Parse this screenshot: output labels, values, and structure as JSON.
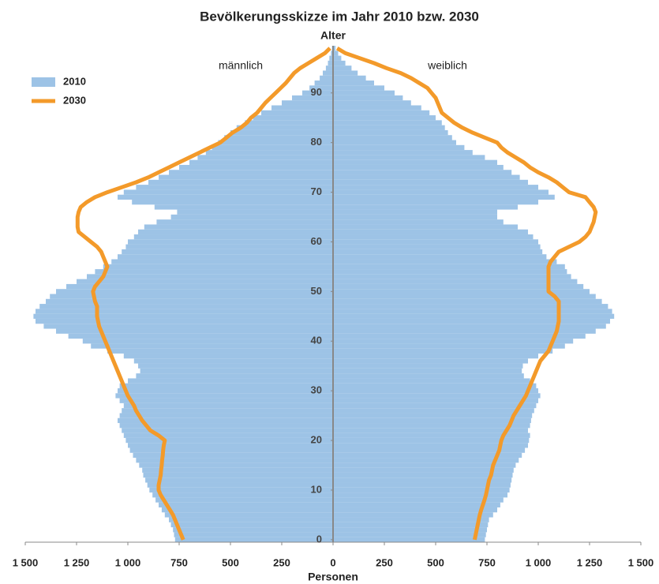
{
  "chart_data": {
    "type": "pyramid",
    "title": "Bevölkerungsskizze im Jahr 2010 bzw. 2030",
    "y_label": "Alter",
    "x_label": "Personen",
    "left_label": "männlich",
    "right_label": "weiblich",
    "ages": [
      0,
      1,
      2,
      3,
      4,
      5,
      6,
      7,
      8,
      9,
      10,
      11,
      12,
      13,
      14,
      15,
      16,
      17,
      18,
      19,
      20,
      21,
      22,
      23,
      24,
      25,
      26,
      27,
      28,
      29,
      30,
      31,
      32,
      33,
      34,
      35,
      36,
      37,
      38,
      39,
      40,
      41,
      42,
      43,
      44,
      45,
      46,
      47,
      48,
      49,
      50,
      51,
      52,
      53,
      54,
      55,
      56,
      57,
      58,
      59,
      60,
      61,
      62,
      63,
      64,
      65,
      66,
      67,
      68,
      69,
      70,
      71,
      72,
      73,
      74,
      75,
      76,
      77,
      78,
      79,
      80,
      81,
      82,
      83,
      84,
      85,
      86,
      87,
      88,
      89,
      90,
      91,
      92,
      93,
      94,
      95,
      96,
      97,
      98,
      99
    ],
    "ylim": [
      0,
      100
    ],
    "yticks": [
      0,
      10,
      20,
      30,
      40,
      50,
      60,
      70,
      80,
      90
    ],
    "xlim": [
      -1500,
      1500
    ],
    "xticks": [
      {
        "value": -1500,
        "label": "1 500"
      },
      {
        "value": -1250,
        "label": "1 250"
      },
      {
        "value": -1000,
        "label": "1 000"
      },
      {
        "value": -750,
        "label": "750"
      },
      {
        "value": -500,
        "label": "500"
      },
      {
        "value": -250,
        "label": "250"
      },
      0,
      250,
      500,
      750,
      {
        "value": 1000,
        "label": "1 000"
      },
      {
        "value": 1250,
        "label": "1 250"
      },
      {
        "value": 1500,
        "label": "1 500"
      }
    ],
    "legend_position": "upper left",
    "series": [
      {
        "name": "2010",
        "kind": "bar",
        "side": "left",
        "color": "#9dc3e6",
        "values": [
          770,
          775,
          780,
          790,
          800,
          820,
          835,
          850,
          865,
          880,
          895,
          905,
          915,
          925,
          930,
          945,
          960,
          975,
          990,
          1000,
          1010,
          1020,
          1030,
          1040,
          1050,
          1040,
          1030,
          1020,
          1040,
          1060,
          1050,
          1040,
          1000,
          960,
          940,
          950,
          970,
          1020,
          1100,
          1180,
          1220,
          1290,
          1350,
          1410,
          1450,
          1460,
          1450,
          1430,
          1400,
          1380,
          1350,
          1300,
          1250,
          1200,
          1160,
          1120,
          1080,
          1050,
          1030,
          1010,
          1000,
          970,
          950,
          920,
          860,
          790,
          760,
          870,
          980,
          1050,
          1020,
          960,
          900,
          850,
          800,
          750,
          700,
          660,
          620,
          590,
          560,
          530,
          500,
          470,
          430,
          390,
          350,
          300,
          250,
          200,
          150,
          115,
          90,
          65,
          50,
          35,
          25,
          18,
          10,
          5
        ]
      },
      {
        "kind": "bar",
        "side": "right",
        "color": "#9dc3e6",
        "values": [
          740,
          745,
          750,
          755,
          760,
          780,
          800,
          815,
          830,
          850,
          860,
          865,
          870,
          875,
          880,
          890,
          905,
          920,
          935,
          950,
          955,
          960,
          950,
          960,
          965,
          970,
          980,
          990,
          1000,
          1010,
          1000,
          990,
          960,
          930,
          920,
          925,
          950,
          1000,
          1070,
          1130,
          1170,
          1230,
          1280,
          1330,
          1350,
          1370,
          1360,
          1340,
          1310,
          1280,
          1250,
          1220,
          1190,
          1160,
          1140,
          1130,
          1090,
          1040,
          1020,
          1010,
          1000,
          975,
          950,
          900,
          830,
          800,
          800,
          900,
          1000,
          1080,
          1050,
          1000,
          950,
          910,
          870,
          830,
          800,
          740,
          680,
          640,
          600,
          580,
          560,
          545,
          530,
          500,
          470,
          430,
          380,
          340,
          300,
          250,
          200,
          160,
          120,
          90,
          60,
          40,
          25,
          12
        ]
      },
      {
        "name": "2030",
        "kind": "line",
        "side": "left",
        "color": "#f39a2a",
        "values": [
          730,
          740,
          750,
          760,
          770,
          780,
          795,
          810,
          825,
          840,
          850,
          850,
          845,
          840,
          838,
          835,
          833,
          830,
          828,
          825,
          820,
          850,
          890,
          910,
          930,
          945,
          960,
          970,
          985,
          1000,
          1010,
          1020,
          1030,
          1040,
          1050,
          1060,
          1070,
          1080,
          1090,
          1100,
          1110,
          1120,
          1130,
          1140,
          1145,
          1150,
          1150,
          1150,
          1160,
          1165,
          1170,
          1160,
          1140,
          1120,
          1110,
          1100,
          1110,
          1120,
          1130,
          1150,
          1180,
          1210,
          1240,
          1245,
          1245,
          1245,
          1240,
          1230,
          1200,
          1160,
          1100,
          1030,
          960,
          900,
          850,
          800,
          750,
          700,
          650,
          600,
          550,
          520,
          490,
          450,
          420,
          400,
          370,
          350,
          330,
          305,
          280,
          255,
          230,
          210,
          190,
          160,
          120,
          80,
          40,
          15
        ]
      },
      {
        "kind": "line",
        "side": "right",
        "color": "#f39a2a",
        "values": [
          690,
          695,
          700,
          705,
          710,
          715,
          722,
          730,
          738,
          745,
          750,
          755,
          760,
          770,
          775,
          780,
          790,
          800,
          810,
          815,
          820,
          830,
          845,
          860,
          870,
          880,
          895,
          910,
          925,
          940,
          950,
          960,
          970,
          980,
          990,
          1000,
          1010,
          1030,
          1050,
          1060,
          1070,
          1080,
          1090,
          1095,
          1100,
          1100,
          1100,
          1100,
          1100,
          1080,
          1050,
          1050,
          1050,
          1050,
          1050,
          1050,
          1060,
          1080,
          1100,
          1150,
          1200,
          1230,
          1250,
          1260,
          1270,
          1275,
          1280,
          1270,
          1250,
          1230,
          1150,
          1120,
          1090,
          1050,
          1000,
          960,
          930,
          890,
          850,
          820,
          800,
          740,
          680,
          630,
          590,
          560,
          530,
          520,
          510,
          500,
          480,
          460,
          420,
          380,
          330,
          260,
          200,
          130,
          60,
          20
        ]
      }
    ]
  }
}
